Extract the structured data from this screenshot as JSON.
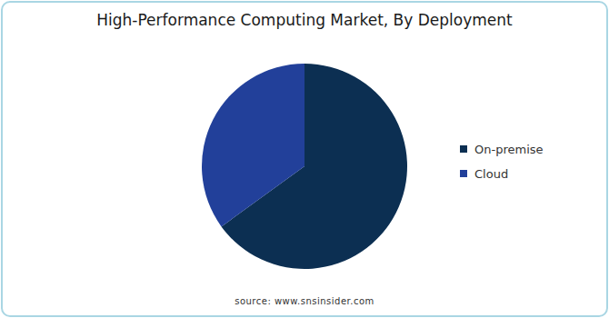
{
  "chart_data": {
    "type": "pie",
    "title": "High-Performance Computing Market, By Deployment",
    "categories": [
      "On-premise",
      "Cloud"
    ],
    "values": [
      65,
      35
    ],
    "colors": [
      "#0c2f52",
      "#22409a"
    ],
    "legend": "right",
    "source": "source: www.snsinsider.com"
  }
}
